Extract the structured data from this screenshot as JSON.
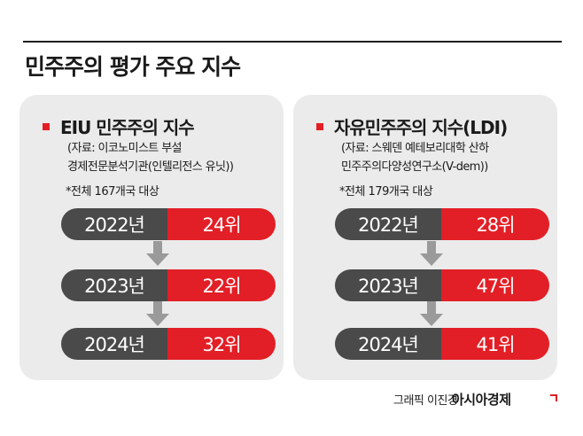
{
  "title": "민주주의 평가 주요 지수",
  "panels": [
    {
      "title": "EIU 민주주의 지수",
      "source_lines": [
        "(자료: 이코노미스트 부설",
        "경제전문분석기관(인텔리전스 유닛))"
      ],
      "count_note": "*전체 167개국 대상",
      "rows": [
        {
          "year": "2022년",
          "rank": "24위"
        },
        {
          "year": "2023년",
          "rank": "22위"
        },
        {
          "year": "2024년",
          "rank": "32위"
        }
      ]
    },
    {
      "title": "자유민주주의 지수(LDI)",
      "source_lines": [
        "(자료: 스웨덴 예테보리대학 산하",
        "민주주의다양성연구소(V-dem))"
      ],
      "count_note": "*전체 179개국 대상",
      "rows": [
        {
          "year": "2022년",
          "rank": "28위"
        },
        {
          "year": "2023년",
          "rank": "47위"
        },
        {
          "year": "2024년",
          "rank": "41위"
        }
      ]
    }
  ],
  "credit": "그래픽 이진경",
  "brand": "아시아경제",
  "colors": {
    "accent_red": "#e21f26",
    "year_gray": "#4a4a4a",
    "panel_bg": "#ebebeb",
    "arrow_gray": "#9a9a9a"
  },
  "icons": [
    "down-arrow-icon",
    "brand-mark-icon"
  ]
}
